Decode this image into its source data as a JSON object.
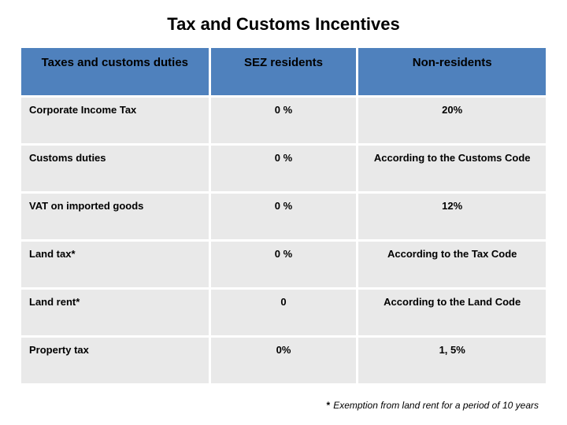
{
  "title": "Tax and Customs Incentives",
  "table": {
    "columns": [
      {
        "key": "taxes",
        "label": "Taxes and customs duties"
      },
      {
        "key": "sez",
        "label": "SEZ residents"
      },
      {
        "key": "non",
        "label": "Non-residents"
      }
    ],
    "header_bg": "#4f81bd",
    "row_bg": "#e9e9e9",
    "rows": [
      {
        "label": "Corporate Income Tax",
        "sez": "0 %",
        "non": "20%"
      },
      {
        "label": "Customs duties",
        "sez": "0 %",
        "non": "According to the Customs Code"
      },
      {
        "label": "VAT on imported goods",
        "sez": "0 %",
        "non": "12%"
      },
      {
        "label": "Land tax*",
        "sez": "0 %",
        "non": "According to the Tax Code"
      },
      {
        "label": "Land rent*",
        "sez": "0",
        "non": "According to the Land Code"
      },
      {
        "label": "Property tax",
        "sez": "0%",
        "non": "1, 5%"
      }
    ]
  },
  "footnote": {
    "marker": "*",
    "text": "Exemption from land rent for a period of 10 years"
  }
}
